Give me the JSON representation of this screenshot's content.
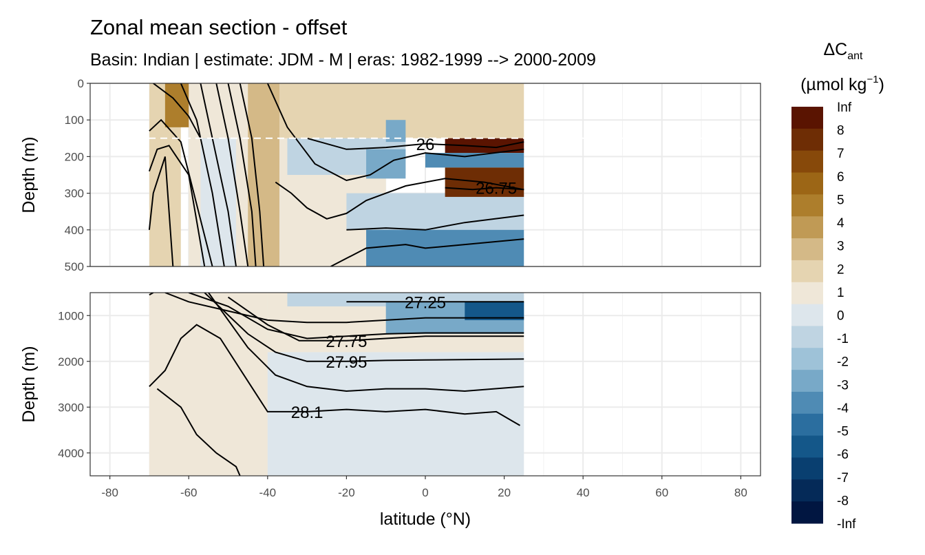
{
  "chart_data": {
    "type": "heatmap",
    "title": "Zonal mean section - offset",
    "subtitle": "Basin: Indian | estimate: JDM - M | eras: 1982-1999 --> 2000-2009",
    "xlabel": "latitude (°N)",
    "ylabel": "Depth (m)",
    "xlim": [
      -85,
      85
    ],
    "x_ticks": [
      -80,
      -60,
      -40,
      -20,
      0,
      20,
      40,
      60,
      80
    ],
    "x_tick_labels": [
      "-80",
      "-60",
      "-40",
      "-20",
      "0",
      "20",
      "40",
      "60",
      "80"
    ],
    "data_lat_range": [
      -70,
      25
    ],
    "panels": [
      {
        "name": "upper",
        "ylim": [
          0,
          500
        ],
        "y_ticks": [
          0,
          100,
          200,
          300,
          400,
          500
        ],
        "y_tick_labels": [
          "0",
          "100",
          "200",
          "300",
          "400",
          "500"
        ],
        "reference_depth_line": 150
      },
      {
        "name": "lower",
        "ylim": [
          500,
          4500
        ],
        "y_ticks": [
          1000,
          2000,
          3000,
          4000
        ],
        "y_tick_labels": [
          "1000",
          "2000",
          "3000",
          "4000"
        ]
      }
    ],
    "fill_regions": [
      {
        "panel": "upper",
        "lat": [
          -70,
          -62
        ],
        "depth": [
          0,
          500
        ],
        "value": 1.5
      },
      {
        "panel": "upper",
        "lat": [
          -66,
          -58
        ],
        "depth": [
          0,
          120
        ],
        "value": 4.5
      },
      {
        "panel": "upper",
        "lat": [
          -60,
          -45
        ],
        "depth": [
          0,
          500
        ],
        "value": 0.5
      },
      {
        "panel": "upper",
        "lat": [
          -57,
          -48
        ],
        "depth": [
          150,
          500
        ],
        "value": -0.5
      },
      {
        "panel": "upper",
        "lat": [
          -45,
          -37
        ],
        "depth": [
          0,
          500
        ],
        "value": 2.5
      },
      {
        "panel": "upper",
        "lat": [
          -37,
          25
        ],
        "depth": [
          0,
          150
        ],
        "value": 1.5
      },
      {
        "panel": "upper",
        "lat": [
          -37,
          -10
        ],
        "depth": [
          150,
          500
        ],
        "value": 0.5
      },
      {
        "panel": "upper",
        "lat": [
          -35,
          -5
        ],
        "depth": [
          150,
          250
        ],
        "value": -1.5
      },
      {
        "panel": "upper",
        "lat": [
          -15,
          -5
        ],
        "depth": [
          180,
          260
        ],
        "value": -3.5
      },
      {
        "panel": "upper",
        "lat": [
          -10,
          -5
        ],
        "depth": [
          100,
          160
        ],
        "value": -3.5
      },
      {
        "panel": "upper",
        "lat": [
          -20,
          25
        ],
        "depth": [
          300,
          400
        ],
        "value": -1.5
      },
      {
        "panel": "upper",
        "lat": [
          -15,
          25
        ],
        "depth": [
          400,
          500
        ],
        "value": -4.5
      },
      {
        "panel": "upper",
        "lat": [
          5,
          25
        ],
        "depth": [
          150,
          190
        ],
        "value": 9
      },
      {
        "panel": "upper",
        "lat": [
          0,
          25
        ],
        "depth": [
          190,
          230
        ],
        "value": -4.5
      },
      {
        "panel": "upper",
        "lat": [
          5,
          25
        ],
        "depth": [
          230,
          310
        ],
        "value": 7.5
      },
      {
        "panel": "lower",
        "lat": [
          -70,
          -40
        ],
        "depth": [
          500,
          4500
        ],
        "value": 0.5
      },
      {
        "panel": "lower",
        "lat": [
          -40,
          25
        ],
        "depth": [
          1800,
          4500
        ],
        "value": -0.5
      },
      {
        "panel": "lower",
        "lat": [
          -40,
          25
        ],
        "depth": [
          500,
          1800
        ],
        "value": 0.5
      },
      {
        "panel": "lower",
        "lat": [
          -35,
          25
        ],
        "depth": [
          500,
          800
        ],
        "value": -1.5
      },
      {
        "panel": "lower",
        "lat": [
          -10,
          25
        ],
        "depth": [
          700,
          1400
        ],
        "value": -3.5
      },
      {
        "panel": "lower",
        "lat": [
          10,
          25
        ],
        "depth": [
          700,
          1100
        ],
        "value": -6.5
      }
    ],
    "isopycnals": [
      {
        "panel": "upper",
        "label": "",
        "lat": [
          -69,
          -64,
          -60,
          -57
        ],
        "depth": [
          0,
          40,
          90,
          150
        ]
      },
      {
        "panel": "upper",
        "label": "",
        "lat": [
          -70,
          -67,
          -62,
          -58,
          -54
        ],
        "depth": [
          130,
          100,
          160,
          330,
          500
        ]
      },
      {
        "panel": "upper",
        "label": "",
        "lat": [
          -70,
          -68,
          -65,
          -60,
          -56
        ],
        "depth": [
          240,
          180,
          170,
          250,
          500
        ]
      },
      {
        "panel": "upper",
        "label": "",
        "lat": [
          -70,
          -69,
          -66,
          -64
        ],
        "depth": [
          400,
          300,
          200,
          500
        ]
      },
      {
        "panel": "upper",
        "label": "",
        "lat": [
          -62,
          -58,
          -54,
          -51
        ],
        "depth": [
          0,
          100,
          300,
          500
        ]
      },
      {
        "panel": "upper",
        "label": "",
        "lat": [
          -57,
          -54,
          -50,
          -48
        ],
        "depth": [
          0,
          150,
          350,
          500
        ]
      },
      {
        "panel": "upper",
        "label": "",
        "lat": [
          -53,
          -50,
          -47,
          -45
        ],
        "depth": [
          0,
          150,
          350,
          500
        ]
      },
      {
        "panel": "upper",
        "label": "",
        "lat": [
          -50,
          -47,
          -44,
          -43
        ],
        "depth": [
          0,
          150,
          350,
          500
        ]
      },
      {
        "panel": "upper",
        "label": "",
        "lat": [
          -47,
          -44,
          -42,
          -41
        ],
        "depth": [
          0,
          150,
          350,
          500
        ]
      },
      {
        "panel": "upper",
        "label": "",
        "lat": [
          -40,
          -35,
          -28,
          -20,
          -14,
          -8,
          0,
          10,
          25
        ],
        "depth": [
          0,
          120,
          220,
          265,
          250,
          210,
          190,
          200,
          180
        ]
      },
      {
        "panel": "upper",
        "label": "26",
        "lat": [
          -30,
          -20,
          -10,
          0,
          10,
          18,
          25
        ],
        "depth": [
          150,
          180,
          175,
          165,
          170,
          175,
          160
        ]
      },
      {
        "panel": "upper",
        "label": "",
        "lat": [
          -38,
          -34,
          -30,
          -25,
          -20,
          -15,
          -10,
          -5,
          5,
          15,
          25
        ],
        "depth": [
          270,
          300,
          340,
          370,
          355,
          320,
          300,
          280,
          260,
          270,
          290
        ]
      },
      {
        "panel": "upper",
        "label": "26.75",
        "lat": [
          5,
          12,
          18,
          25
        ],
        "depth": [
          285,
          290,
          285,
          290
        ]
      },
      {
        "panel": "upper",
        "label": "",
        "lat": [
          -24,
          -15,
          -5,
          0,
          10,
          25
        ],
        "depth": [
          500,
          450,
          440,
          450,
          440,
          425
        ]
      },
      {
        "panel": "upper",
        "label": "",
        "lat": [
          -20,
          -10,
          0,
          10,
          25
        ],
        "depth": [
          400,
          395,
          400,
          380,
          360
        ]
      },
      {
        "panel": "lower",
        "label": "",
        "lat": [
          -70,
          -69
        ],
        "depth": [
          550,
          500
        ]
      },
      {
        "panel": "lower",
        "label": "",
        "lat": [
          -66,
          -60,
          -50,
          -40,
          -30,
          -20,
          -10,
          0,
          25
        ],
        "depth": [
          500,
          700,
          900,
          1100,
          1150,
          1150,
          1100,
          1050,
          1050
        ]
      },
      {
        "panel": "lower",
        "label": "27.25",
        "lat": [
          -20,
          -10,
          0,
          10,
          25
        ],
        "depth": [
          700,
          700,
          700,
          700,
          700
        ]
      },
      {
        "panel": "lower",
        "label": "",
        "lat": [
          -60,
          -50,
          -40,
          -30,
          -20,
          -10,
          0,
          25
        ],
        "depth": [
          500,
          800,
          1300,
          1500,
          1450,
          1400,
          1380,
          1380
        ]
      },
      {
        "panel": "lower",
        "label": "27.75",
        "lat": [
          -50,
          -40,
          -32,
          -20,
          -10,
          0,
          25
        ],
        "depth": [
          600,
          1200,
          1550,
          1550,
          1500,
          1450,
          1450
        ]
      },
      {
        "panel": "lower",
        "label": "27.95",
        "lat": [
          -56,
          -45,
          -38,
          -30,
          -20,
          -10,
          0,
          25
        ],
        "depth": [
          500,
          1400,
          1800,
          2000,
          2000,
          1980,
          1970,
          1950
        ]
      },
      {
        "panel": "lower",
        "label": "",
        "lat": [
          -55,
          -45,
          -38,
          -30,
          -20,
          -10,
          0,
          10,
          25
        ],
        "depth": [
          500,
          1700,
          2300,
          2550,
          2650,
          2600,
          2600,
          2650,
          2550
        ]
      },
      {
        "panel": "lower",
        "label": "28.1",
        "lat": [
          -70,
          -66,
          -62,
          -58,
          -52,
          -46,
          -40,
          -30,
          -20,
          -10,
          0,
          10,
          18,
          22,
          24
        ],
        "depth": [
          2550,
          2200,
          1500,
          1200,
          1500,
          2300,
          3100,
          3100,
          3050,
          3100,
          3050,
          3150,
          3100,
          3300,
          3400
        ]
      },
      {
        "panel": "lower",
        "label": "",
        "lat": [
          -68,
          -62,
          -58,
          -53,
          -48,
          -47
        ],
        "depth": [
          2600,
          3000,
          3600,
          4000,
          4300,
          4500
        ]
      }
    ],
    "colorbar": {
      "title": "ΔC",
      "title_subscript": "ant",
      "unit": "(µmol kg",
      "unit_superscript": "−1",
      "unit_close": ")",
      "labels": [
        "Inf",
        "8",
        "7",
        "6",
        "5",
        "4",
        "3",
        "2",
        "1",
        "0",
        "-1",
        "-2",
        "-3",
        "-4",
        "-5",
        "-6",
        "-7",
        "-8",
        "-Inf"
      ],
      "colors": [
        "#5a1401",
        "#6e2d05",
        "#87490a",
        "#9c6616",
        "#ad7e2c",
        "#c09a55",
        "#d4b987",
        "#e5d4b1",
        "#efe7d8",
        "#dde6ec",
        "#bfd4e2",
        "#9ec2d8",
        "#78a9c8",
        "#4f8bb4",
        "#2b6e9f",
        "#145789",
        "#093f70",
        "#052a58",
        "#011641"
      ]
    }
  }
}
